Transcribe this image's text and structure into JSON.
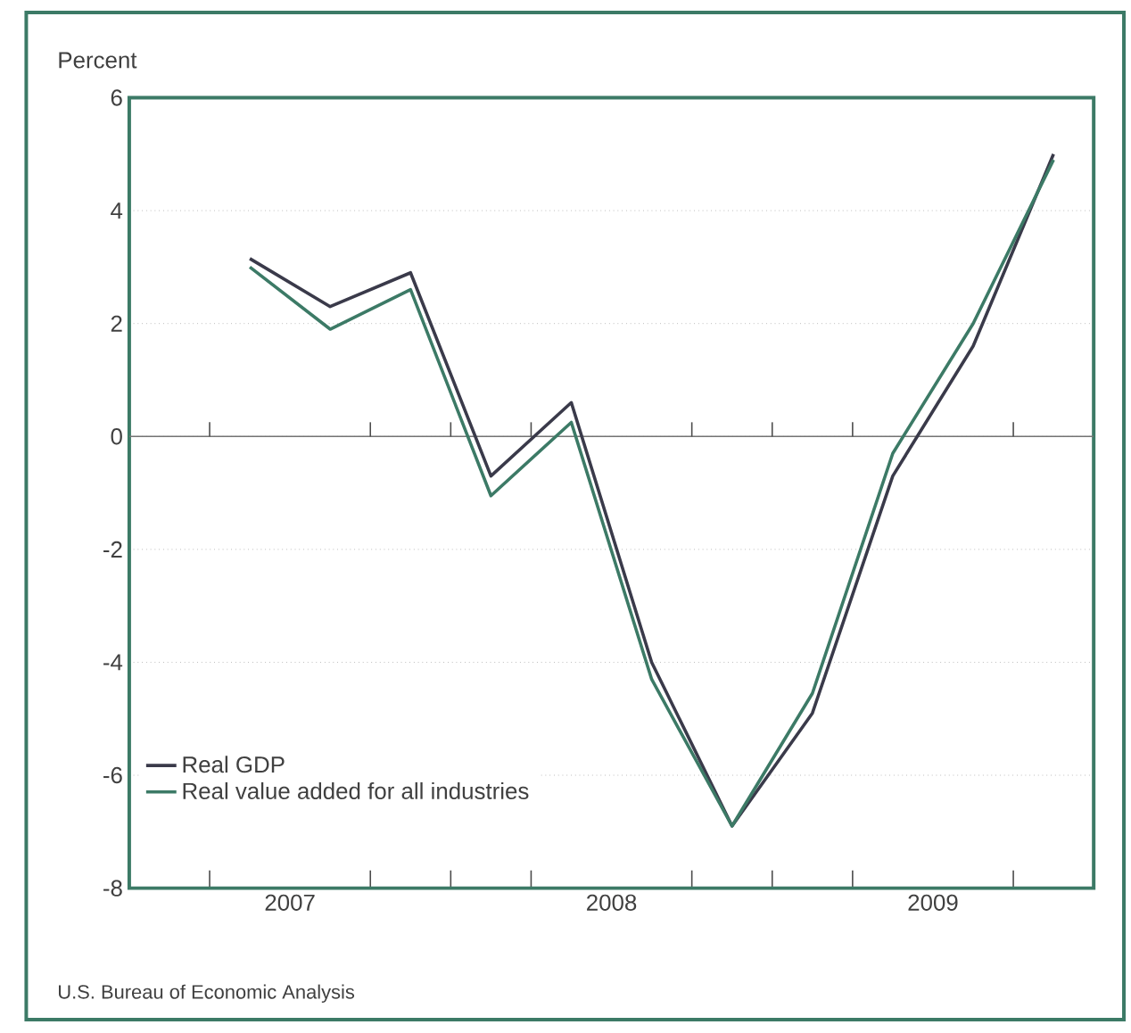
{
  "chart_data": {
    "type": "line",
    "ylabel": "Percent",
    "x": [
      2007.375,
      2007.625,
      2007.875,
      2008.125,
      2008.375,
      2008.625,
      2008.875,
      2009.125,
      2009.375,
      2009.625,
      2009.875
    ],
    "series": [
      {
        "name": "Real GDP",
        "color": "#3a3a4a",
        "values": [
          3.15,
          2.3,
          2.9,
          -0.7,
          0.6,
          -4.0,
          -6.9,
          -4.9,
          -0.7,
          1.6,
          5.0
        ]
      },
      {
        "name": "Real value added for all industries",
        "color": "#3c7a66",
        "values": [
          3.0,
          1.9,
          2.6,
          -1.05,
          0.25,
          -4.3,
          -6.9,
          -4.55,
          -0.3,
          2.0,
          4.9
        ]
      }
    ],
    "xlim": [
      2007,
      2010
    ],
    "xticks": [
      {
        "value": 2007.25,
        "label": null
      },
      {
        "value": 2007.5,
        "label": "2007"
      },
      {
        "value": 2007.75,
        "label": null
      },
      {
        "value": 2008,
        "label": null
      },
      {
        "value": 2008.25,
        "label": null
      },
      {
        "value": 2008.5,
        "label": "2008"
      },
      {
        "value": 2008.75,
        "label": null
      },
      {
        "value": 2009,
        "label": null
      },
      {
        "value": 2009.25,
        "label": null
      },
      {
        "value": 2009.5,
        "label": "2009"
      },
      {
        "value": 2009.75,
        "label": null
      }
    ],
    "ylim": [
      -8,
      6
    ],
    "yticks": [
      -8,
      -6,
      -4,
      -2,
      0,
      2,
      4,
      6
    ],
    "grid": "y",
    "legend": "bottom left",
    "marker": "none",
    "line_style": "solid",
    "ref_lines": [
      {
        "axis": "y",
        "value": 0
      }
    ],
    "annotations": [
      "U.S. Bureau of Economic Analysis"
    ]
  }
}
